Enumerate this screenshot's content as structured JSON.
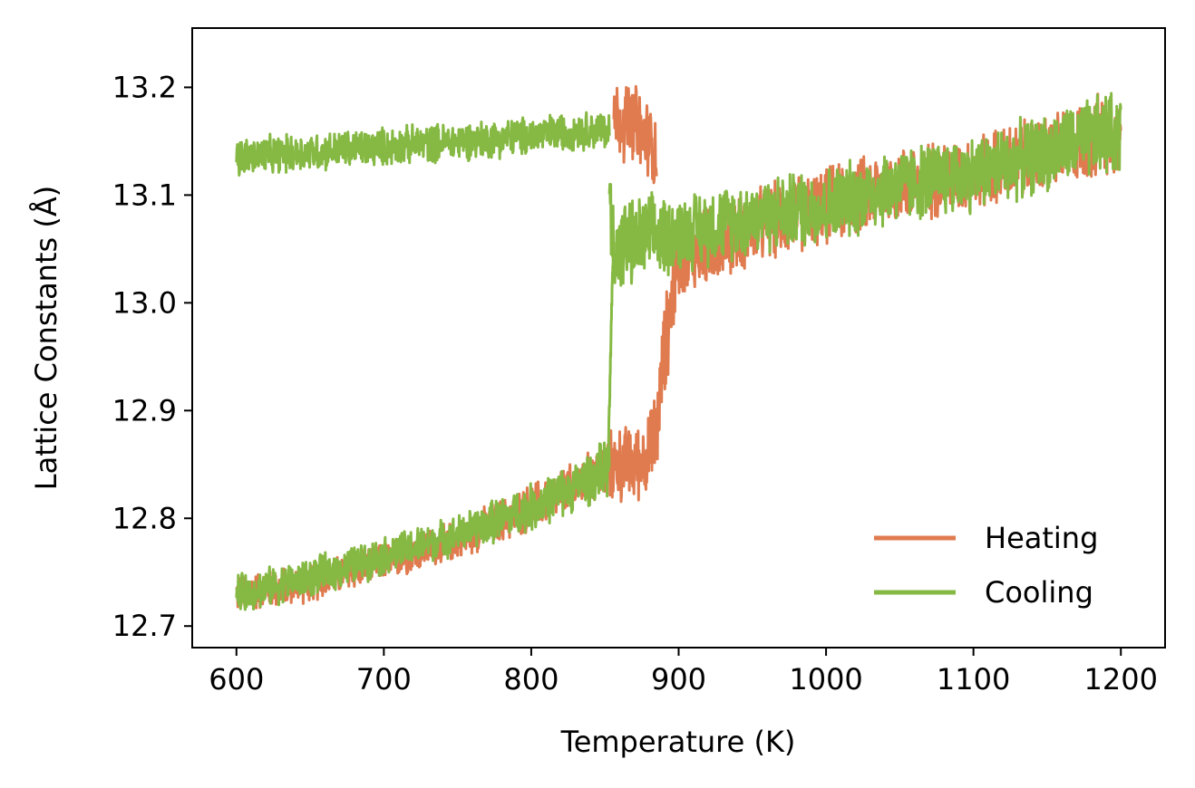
{
  "chart_data": {
    "type": "line",
    "title": "",
    "xlabel": "Temperature (K)",
    "ylabel": "Lattice Constants (Å)",
    "xlim": [
      570,
      1230
    ],
    "ylim": [
      12.68,
      13.255
    ],
    "xticks": [
      600,
      700,
      800,
      900,
      1000,
      1100,
      1200
    ],
    "xtick_labels": [
      "600",
      "700",
      "800",
      "900",
      "1000",
      "1100",
      "1200"
    ],
    "yticks": [
      12.7,
      12.8,
      12.9,
      13.0,
      13.1,
      13.2
    ],
    "ytick_labels": [
      "12.7",
      "12.8",
      "12.9",
      "13.0",
      "13.1",
      "13.2"
    ],
    "grid": false,
    "legend_position": "lower-right",
    "series": [
      {
        "name": "Heating",
        "color": "#e07b4f",
        "branches": [
          {
            "x": [
              600,
              650,
              700,
              750,
              800,
              830,
              850,
              856,
              870,
              880,
              885,
              890,
              895,
              900,
              950,
              1000,
              1050,
              1100,
              1150,
              1200
            ],
            "y": [
              12.73,
              12.74,
              12.76,
              12.78,
              12.81,
              12.83,
              12.845,
              12.85,
              12.85,
              12.86,
              12.88,
              12.95,
              13.0,
              13.04,
              13.07,
              13.09,
              13.11,
              13.12,
              13.14,
              13.16
            ],
            "noise": [
              0.02,
              0.02,
              0.02,
              0.02,
              0.025,
              0.025,
              0.03,
              0.04,
              0.04,
              0.04,
              0.05,
              0.05,
              0.05,
              0.04,
              0.04,
              0.04,
              0.04,
              0.04,
              0.04,
              0.045
            ]
          },
          {
            "x": [
              856,
              860,
              870,
              880,
              885
            ],
            "y": [
              13.17,
              13.17,
              13.165,
              13.15,
              13.14
            ],
            "noise": [
              0.04,
              0.04,
              0.045,
              0.04,
              0.04
            ]
          }
        ]
      },
      {
        "name": "Cooling",
        "color": "#86b943",
        "branches": [
          {
            "x": [
              600,
              650,
              700,
              750,
              800,
              830,
              853
            ],
            "y": [
              13.135,
              13.14,
              13.145,
              13.15,
              13.155,
              13.16,
              13.16
            ],
            "noise": [
              0.02,
              0.02,
              0.02,
              0.02,
              0.02,
              0.02,
              0.02
            ]
          },
          {
            "x": [
              853,
              855,
              858,
              860,
              880,
              900,
              950,
              1000,
              1050,
              1100,
              1150,
              1200
            ],
            "y": [
              13.1,
              13.06,
              13.05,
              13.05,
              13.06,
              13.065,
              13.08,
              13.09,
              13.11,
              13.12,
              13.14,
              13.16
            ],
            "noise": [
              0.04,
              0.05,
              0.05,
              0.05,
              0.045,
              0.04,
              0.04,
              0.04,
              0.04,
              0.04,
              0.04,
              0.045
            ]
          },
          {
            "x": [
              600,
              650,
              700,
              750,
              800,
              830,
              850,
              853
            ],
            "y": [
              12.73,
              12.745,
              12.765,
              12.785,
              12.81,
              12.83,
              12.845,
              12.85
            ],
            "noise": [
              0.02,
              0.02,
              0.02,
              0.02,
              0.025,
              0.025,
              0.03,
              0.03
            ]
          },
          {
            "x": [
              852,
              853,
              854,
              855,
              856
            ],
            "y": [
              12.85,
              12.9,
              12.96,
              13.02,
              13.06
            ],
            "noise": [
              0.01,
              0.01,
              0.01,
              0.01,
              0.01
            ]
          }
        ]
      }
    ]
  }
}
